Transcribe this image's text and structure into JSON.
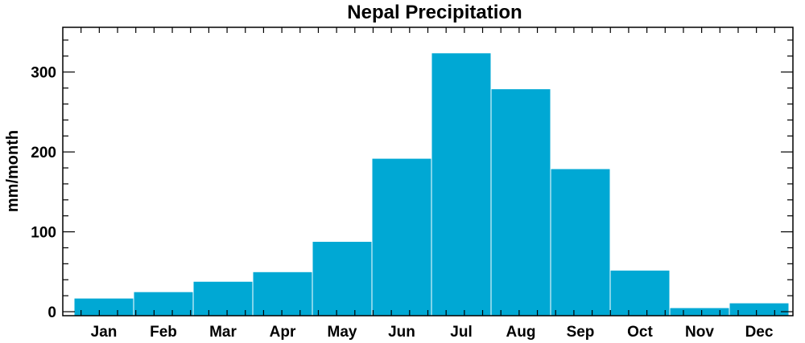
{
  "chart_data": {
    "type": "bar",
    "title": "Nepal Precipitation",
    "xlabel": "",
    "ylabel": "mm/month",
    "categories": [
      "Jan",
      "Feb",
      "Mar",
      "Apr",
      "May",
      "Jun",
      "Jul",
      "Aug",
      "Sep",
      "Oct",
      "Nov",
      "Dec"
    ],
    "values": [
      17,
      25,
      38,
      50,
      88,
      192,
      324,
      279,
      179,
      52,
      5,
      11
    ],
    "ylim": [
      -5,
      356
    ],
    "yticks": [
      0,
      100,
      200,
      300
    ],
    "bar_color": "#00a8d4",
    "grid": false,
    "legend": "none"
  }
}
